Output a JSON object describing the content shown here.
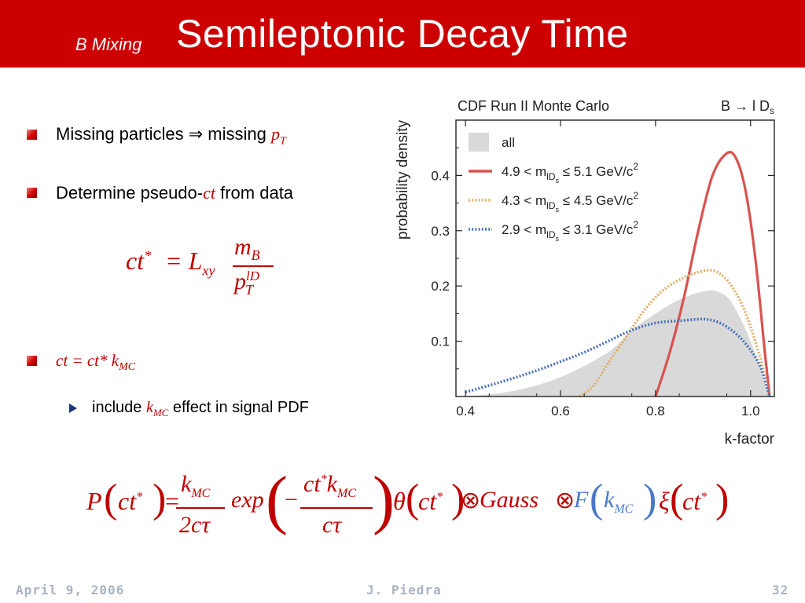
{
  "header": {
    "subtitle": "B Mixing",
    "title": "Semileptonic Decay Time"
  },
  "bullets": {
    "b1": {
      "text": "Missing particles ⇒ missing ",
      "math": "p",
      "math_sub": "T"
    },
    "b2": {
      "text": "Determine pseudo-",
      "math": "ct",
      "text_after": " from data"
    },
    "b3": {
      "math": "ct = ct* k",
      "math_sub": "MC"
    },
    "sub1": {
      "text": "include ",
      "math": "k",
      "math_sub": "MC",
      "text_after": " effect in signal PDF"
    }
  },
  "formula1": {
    "lhs": "ct",
    "sup": "*",
    "eq": "= L",
    "lsub": "xy",
    "num": "m",
    "num_sub": "B",
    "den": "p",
    "den_sup": "lD",
    "den_sub": "T"
  },
  "formula2": {
    "P": "P",
    "ct": "ct",
    "star": "*",
    "k": "k",
    "mc": "MC",
    "two_ctau": "2cτ",
    "exp": "exp",
    "minus": "−",
    "ctau": "cτ",
    "theta": "θ",
    "otimes": "⊗",
    "gauss": "Gauss",
    "F": "F",
    "xi": "ξ"
  },
  "chart_data": {
    "type": "line",
    "title": "CDF Run II Monte Carlo",
    "process_label": "B → l D",
    "process_sub": "s",
    "xlabel": "k-factor",
    "ylabel": "probability density",
    "xlim": [
      0.38,
      1.05
    ],
    "ylim": [
      0,
      0.5
    ],
    "xticks": [
      "0.4",
      "0.6",
      "0.8",
      "1.0"
    ],
    "xtick_values": [
      0.4,
      0.6,
      0.8,
      1.0
    ],
    "yticks": [
      "0.1",
      "0.2",
      "0.3",
      "0.4"
    ],
    "ytick_values": [
      0.1,
      0.2,
      0.3,
      0.4
    ],
    "legend_placement": "top-left",
    "legend": [
      {
        "name": "all",
        "style": "filled",
        "color": "#d9d9d9"
      },
      {
        "pre": "4.9 < m",
        "sub1": "lD",
        "sub2": "s",
        "post": " ≤ 5.1 GeV/c",
        "sup": "2",
        "style": "solid",
        "color": "#d9534f"
      },
      {
        "pre": "4.3 < m",
        "sub1": "lD",
        "sub2": "s",
        "post": " ≤ 4.5 GeV/c",
        "sup": "2",
        "style": "dotted",
        "color": "#e0b06a"
      },
      {
        "pre": "2.9 < m",
        "sub1": "lD",
        "sub2": "s",
        "post": " ≤ 3.1 GeV/c",
        "sup": "2",
        "style": "dotted",
        "color": "#4a72b8"
      }
    ],
    "series": [
      {
        "name": "all",
        "x": [
          0.4,
          0.5,
          0.6,
          0.7,
          0.75,
          0.8,
          0.85,
          0.9,
          0.93,
          0.96,
          1.0,
          1.04
        ],
        "y": [
          0.0,
          0.01,
          0.035,
          0.08,
          0.12,
          0.15,
          0.175,
          0.19,
          0.19,
          0.17,
          0.1,
          0.0
        ]
      },
      {
        "name": "4.9 < m_lDs ≤ 5.1 GeV/c2",
        "x": [
          0.8,
          0.83,
          0.86,
          0.89,
          0.92,
          0.95,
          0.97,
          0.99,
          1.01,
          1.03,
          1.04
        ],
        "y": [
          0.0,
          0.08,
          0.18,
          0.3,
          0.4,
          0.44,
          0.43,
          0.37,
          0.25,
          0.08,
          0.0
        ]
      },
      {
        "name": "4.3 < m_lDs ≤ 4.5 GeV/c2",
        "x": [
          0.64,
          0.67,
          0.7,
          0.74,
          0.78,
          0.82,
          0.86,
          0.9,
          0.93,
          0.96,
          0.99,
          1.02,
          1.04
        ],
        "y": [
          0.0,
          0.02,
          0.06,
          0.11,
          0.16,
          0.195,
          0.215,
          0.227,
          0.225,
          0.2,
          0.15,
          0.07,
          0.0
        ]
      },
      {
        "name": "2.9 < m_lDs ≤ 3.1 GeV/c2",
        "x": [
          0.4,
          0.45,
          0.5,
          0.55,
          0.6,
          0.65,
          0.7,
          0.75,
          0.8,
          0.85,
          0.9,
          0.93,
          0.96,
          0.99,
          1.02,
          1.04
        ],
        "y": [
          0.008,
          0.02,
          0.033,
          0.047,
          0.063,
          0.08,
          0.1,
          0.12,
          0.133,
          0.137,
          0.14,
          0.135,
          0.12,
          0.095,
          0.055,
          0.0
        ]
      }
    ]
  },
  "footer": {
    "date": "April 9, 2006",
    "author": "J. Piedra",
    "page": "32"
  }
}
